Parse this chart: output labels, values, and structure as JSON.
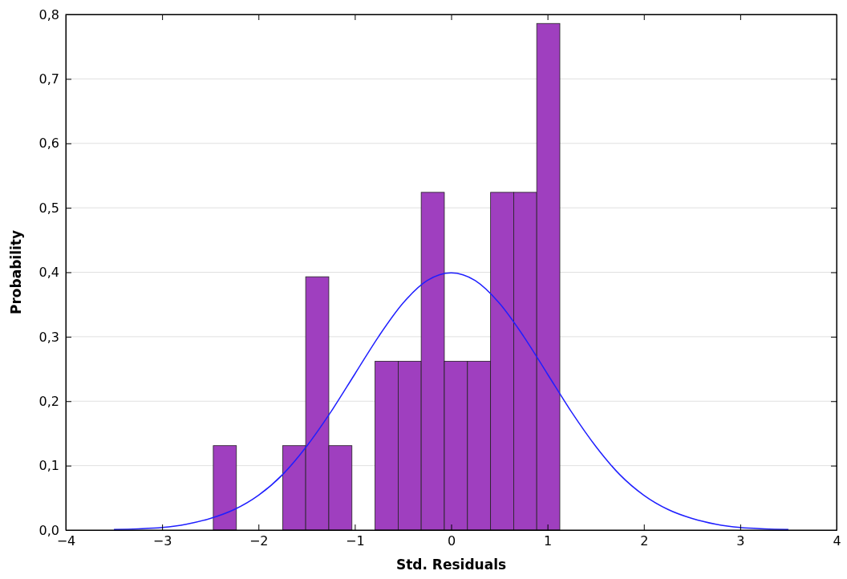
{
  "chart_data": {
    "type": "histogram",
    "xlabel": "Std. Residuals",
    "ylabel": "Probability",
    "bins": [
      -2.469,
      -2.229,
      -1.989,
      -1.749,
      -1.51,
      -1.27,
      -1.03,
      -0.79,
      -0.55,
      -0.311,
      -0.071,
      0.169,
      0.409,
      0.649,
      0.888,
      1.128
    ],
    "series": [
      {
        "color": "#9f3fbf",
        "values": [
          0.131,
          0,
          0,
          0.131,
          0.393,
          0.131,
          0,
          0.262,
          0.262,
          0.524,
          0.262,
          0.262,
          0.524,
          0.524,
          0.786
        ]
      },
      {
        "type": "line",
        "color": "#1f1fff",
        "x": [
          -3.5,
          -3.25,
          -3,
          -2.75,
          -2.5,
          -2.25,
          -2,
          -1.75,
          -1.5,
          -1.25,
          -1,
          -0.75,
          -0.5,
          -0.25,
          0,
          0.25,
          0.5,
          0.75,
          1,
          1.25,
          1.5,
          1.75,
          2,
          2.25,
          2.5,
          2.75,
          3,
          3.25,
          3.5
        ],
        "values": [
          0.001,
          0.002,
          0.004,
          0.009,
          0.018,
          0.032,
          0.054,
          0.086,
          0.13,
          0.183,
          0.242,
          0.301,
          0.352,
          0.387,
          0.399,
          0.387,
          0.352,
          0.301,
          0.242,
          0.183,
          0.13,
          0.086,
          0.054,
          0.032,
          0.018,
          0.009,
          0.004,
          0.002,
          0.001
        ]
      }
    ],
    "xlim": [
      -4,
      4
    ],
    "xticks": [
      {
        "value": -4,
        "label": "−4"
      },
      {
        "value": -3,
        "label": "−3"
      },
      {
        "value": -2,
        "label": "−2"
      },
      {
        "value": -1,
        "label": "−1"
      },
      0,
      1,
      2,
      3,
      4
    ],
    "ylim": [
      0,
      0.8
    ],
    "yticks": [
      {
        "value": 0,
        "label": "0,0"
      },
      {
        "value": 0.1,
        "label": "0,1"
      },
      {
        "value": 0.2,
        "label": "0,2"
      },
      {
        "value": 0.3,
        "label": "0,3"
      },
      {
        "value": 0.4,
        "label": "0,4"
      },
      {
        "value": 0.5,
        "label": "0,5"
      },
      {
        "value": 0.6,
        "label": "0,6"
      },
      {
        "value": 0.7,
        "label": "0,7"
      },
      {
        "value": 0.8,
        "label": "0,8"
      }
    ],
    "grid": "y",
    "marker": "none",
    "line_style": "solid"
  }
}
